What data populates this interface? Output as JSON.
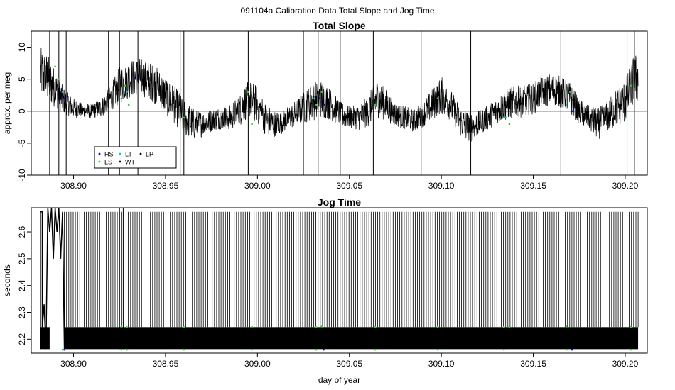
{
  "figure_title": "091104a   Calibration Data Total Slope and Jog Time",
  "chart_data": [
    {
      "type": "line",
      "title": "Total Slope",
      "xlabel": "",
      "ylabel": "approx. per meg",
      "xlim": [
        308.877,
        309.212
      ],
      "ylim": [
        -10,
        12.5
      ],
      "x_ticks": [
        308.9,
        308.95,
        309.0,
        309.05,
        309.1,
        309.15,
        309.2
      ],
      "x_tick_labels": [
        "308.90",
        "308.95",
        "309.00",
        "309.05",
        "309.10",
        "309.15",
        "309.20"
      ],
      "y_ticks": [
        -10,
        -5,
        0,
        5,
        10
      ],
      "y_tick_labels": [
        "-10",
        "-5",
        "0",
        "5",
        "10"
      ],
      "reference_line_y": 0,
      "series_color": "#000000",
      "x_start": 308.882,
      "x_end": 309.207,
      "envelope": {
        "x": [
          308.882,
          308.886,
          308.89,
          308.895,
          308.9,
          308.905,
          308.91,
          308.915,
          308.92,
          308.925,
          308.93,
          308.935,
          308.94,
          308.945,
          308.95,
          308.955,
          308.96,
          308.965,
          308.97,
          308.975,
          308.98,
          308.985,
          308.99,
          308.995,
          309.0,
          309.005,
          309.01,
          309.015,
          309.02,
          309.025,
          309.03,
          309.035,
          309.04,
          309.045,
          309.05,
          309.055,
          309.06,
          309.065,
          309.07,
          309.075,
          309.08,
          309.085,
          309.09,
          309.095,
          309.1,
          309.105,
          309.11,
          309.115,
          309.12,
          309.125,
          309.13,
          309.135,
          309.14,
          309.145,
          309.15,
          309.155,
          309.16,
          309.165,
          309.17,
          309.175,
          309.18,
          309.185,
          309.19,
          309.195,
          309.2,
          309.205
        ],
        "center": [
          6,
          5,
          3.5,
          1.5,
          0.5,
          0,
          0,
          0.5,
          2,
          4,
          5,
          5.5,
          5,
          4,
          2.5,
          1,
          -1,
          -2,
          -2,
          -1.5,
          -1,
          -1,
          0,
          2,
          1,
          -1.5,
          -2,
          -1.5,
          -0.5,
          0.5,
          1.5,
          2,
          1,
          -0.5,
          -1,
          -1,
          0,
          2,
          1,
          -0.5,
          -1,
          -1.5,
          -0.5,
          1,
          2.5,
          1,
          -1.5,
          -2.5,
          -2,
          -1,
          0,
          1,
          1.5,
          1.5,
          2,
          3,
          3.5,
          3,
          2,
          0,
          -1,
          -2,
          -1,
          0.5,
          1.5,
          5
        ],
        "half_width": [
          4,
          4,
          3,
          2,
          1.5,
          1.2,
          1.2,
          1.5,
          2,
          3,
          3,
          3,
          3,
          3,
          3,
          3,
          3,
          2.5,
          2,
          1.8,
          1.8,
          2,
          2.5,
          3,
          3,
          2.5,
          2,
          1.8,
          2,
          2.5,
          3,
          3,
          2.5,
          2,
          1.8,
          2,
          2.5,
          3,
          2.5,
          2,
          1.8,
          1.8,
          2,
          2.5,
          3,
          2.5,
          2.5,
          2.5,
          2,
          2,
          2,
          2.5,
          2.5,
          2.5,
          2.5,
          2.5,
          2.5,
          2.5,
          2.5,
          2,
          2,
          2.5,
          2.5,
          3,
          3.5,
          4
        ]
      },
      "spikes": [
        308.887,
        308.892,
        308.896,
        308.919,
        308.925,
        308.935,
        308.958,
        308.96,
        308.995,
        309.025,
        309.033,
        309.045,
        309.063,
        309.089,
        309.116,
        309.165,
        309.201,
        309.205
      ],
      "markers": [
        {
          "series": "LS",
          "color": "#33cc33",
          "x": [
            308.89,
            308.892,
            308.894,
            308.926,
            308.928,
            308.93,
            308.96,
            308.962,
            308.995,
            308.997,
            309.032,
            309.035,
            309.064,
            309.066,
            309.098,
            309.134,
            309.137,
            309.168,
            309.17,
            309.2,
            309.203
          ],
          "y": [
            7,
            5,
            3,
            2,
            4,
            1,
            -1,
            -3,
            3,
            -2,
            1,
            3,
            1,
            2,
            2,
            -1,
            -2,
            1,
            3,
            -1,
            4
          ]
        },
        {
          "series": "HS",
          "color": "#0000ff",
          "x": [
            308.893,
            308.895,
            308.934,
            309.034,
            309.036,
            309.171
          ],
          "y": [
            3,
            2,
            5,
            2,
            1,
            0
          ]
        },
        {
          "series": "LT",
          "color": "#00cccc",
          "x": [
            308.929,
            309.031,
            309.135,
            309.168
          ],
          "y": [
            3,
            2,
            -1,
            1
          ]
        }
      ],
      "legend": {
        "placement": "bottom-left",
        "entries": [
          {
            "label": "HS",
            "color": "#0000ff"
          },
          {
            "label": "LT",
            "color": "#00cccc"
          },
          {
            "label": "LP",
            "color": "#000000"
          },
          {
            "label": "LS",
            "color": "#33cc33"
          },
          {
            "label": "WT",
            "color": "#000000"
          }
        ]
      }
    },
    {
      "type": "line",
      "title": "Jog Time",
      "xlabel": "day of year",
      "ylabel": "seconds",
      "xlim": [
        308.877,
        309.212
      ],
      "ylim": [
        2.148,
        2.69
      ],
      "x_ticks": [
        308.9,
        308.95,
        309.0,
        309.05,
        309.1,
        309.15,
        309.2
      ],
      "x_tick_labels": [
        "308.90",
        "308.95",
        "309.00",
        "309.05",
        "309.10",
        "309.15",
        "309.20"
      ],
      "y_ticks": [
        2.2,
        2.3,
        2.4,
        2.5,
        2.6
      ],
      "y_tick_labels": [
        "2.2",
        "2.3",
        "2.4",
        "2.5",
        "2.6"
      ],
      "series_color": "#000000",
      "low_band": [
        2.163,
        2.245
      ],
      "high_value": 2.675,
      "oscillation_x_range": [
        308.895,
        309.207
      ],
      "oscillation_period": 0.0012,
      "early_segment": [
        {
          "x": 308.882,
          "y": 2.163
        },
        {
          "x": 308.882,
          "y": 2.675
        },
        {
          "x": 308.883,
          "y": 2.675
        },
        {
          "x": 308.883,
          "y": 2.245
        },
        {
          "x": 308.884,
          "y": 2.33
        },
        {
          "x": 308.885,
          "y": 2.163
        },
        {
          "x": 308.886,
          "y": 2.69
        },
        {
          "x": 308.887,
          "y": 2.6
        },
        {
          "x": 308.888,
          "y": 2.69
        },
        {
          "x": 308.889,
          "y": 2.5
        },
        {
          "x": 308.89,
          "y": 2.69
        },
        {
          "x": 308.891,
          "y": 2.6
        },
        {
          "x": 308.892,
          "y": 2.69
        },
        {
          "x": 308.893,
          "y": 2.5
        },
        {
          "x": 308.894,
          "y": 2.675
        },
        {
          "x": 308.895,
          "y": 2.163
        }
      ],
      "tall_spikes": [
        308.925,
        308.927
      ],
      "markers": [
        {
          "series": "LS",
          "color": "#33cc33",
          "x": [
            308.926,
            308.929,
            308.96,
            308.997,
            309.032,
            309.035,
            309.064,
            309.098,
            309.134,
            309.137,
            309.168,
            309.203
          ],
          "y": [
            2.247,
            2.245,
            2.245,
            2.246,
            2.245,
            2.247,
            2.245,
            2.246,
            2.245,
            2.245,
            2.247,
            2.245
          ]
        },
        {
          "series": "LS-low",
          "color": "#33cc33",
          "x": [
            308.894,
            308.926,
            308.929,
            308.96,
            308.997,
            309.032,
            309.064,
            309.098,
            309.134,
            309.168,
            309.203
          ],
          "y": [
            2.161,
            2.161,
            2.161,
            2.161,
            2.161,
            2.161,
            2.161,
            2.161,
            2.161,
            2.161,
            2.161
          ]
        },
        {
          "series": "HS",
          "color": "#0000ff",
          "x": [
            308.895,
            309.036,
            309.171
          ],
          "y": [
            2.161,
            2.161,
            2.161
          ]
        }
      ]
    }
  ]
}
